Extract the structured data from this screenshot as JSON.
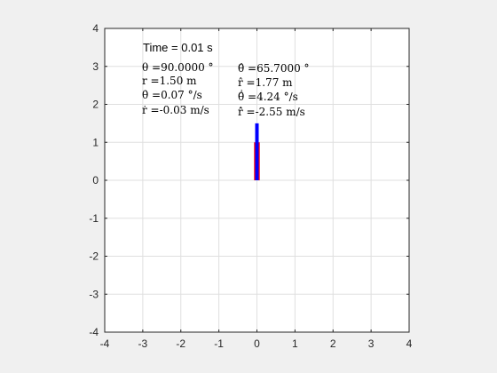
{
  "chart_data": {
    "type": "scatter",
    "title": "",
    "xlabel": "",
    "ylabel": "",
    "xlim": [
      -4,
      4
    ],
    "ylim": [
      -4,
      4
    ],
    "grid": true,
    "x_ticks": [
      "-4",
      "-3",
      "-2",
      "-1",
      "0",
      "1",
      "2",
      "3",
      "4"
    ],
    "y_ticks": [
      "4",
      "3",
      "2",
      "1",
      "0",
      "-1",
      "-2",
      "-3",
      "-4"
    ],
    "annotations": {
      "time": "Time = 0.01 s",
      "actual": [
        "θ =90.0000 °",
        "r =1.50 m",
        "θ̇ =0.07 °/s",
        "ṙ =-0.03 m/s"
      ],
      "estimated": [
        "θ̂ =65.7000 °",
        "r̂ =1.77 m",
        "θ̂̇ =4.24 °/s",
        "r̂̇ =-2.55 m/s"
      ]
    },
    "series": [
      {
        "color": "#0000ff",
        "segments": [
          {
            "x_from": 0,
            "x_to": 0,
            "y_from": 0,
            "y_to": 1.5
          }
        ]
      },
      {
        "color": "#ff0000",
        "bars": [
          {
            "x_center": 0,
            "width": 0.15,
            "y_from": 0,
            "y_to": 1.0
          }
        ]
      }
    ]
  },
  "colors": {
    "background": "#f0f0f0",
    "axes_bg": "#ffffff",
    "grid": "#dfdfdf",
    "axis": "#262626",
    "blue": "#0000ff",
    "red": "#ff0000"
  }
}
